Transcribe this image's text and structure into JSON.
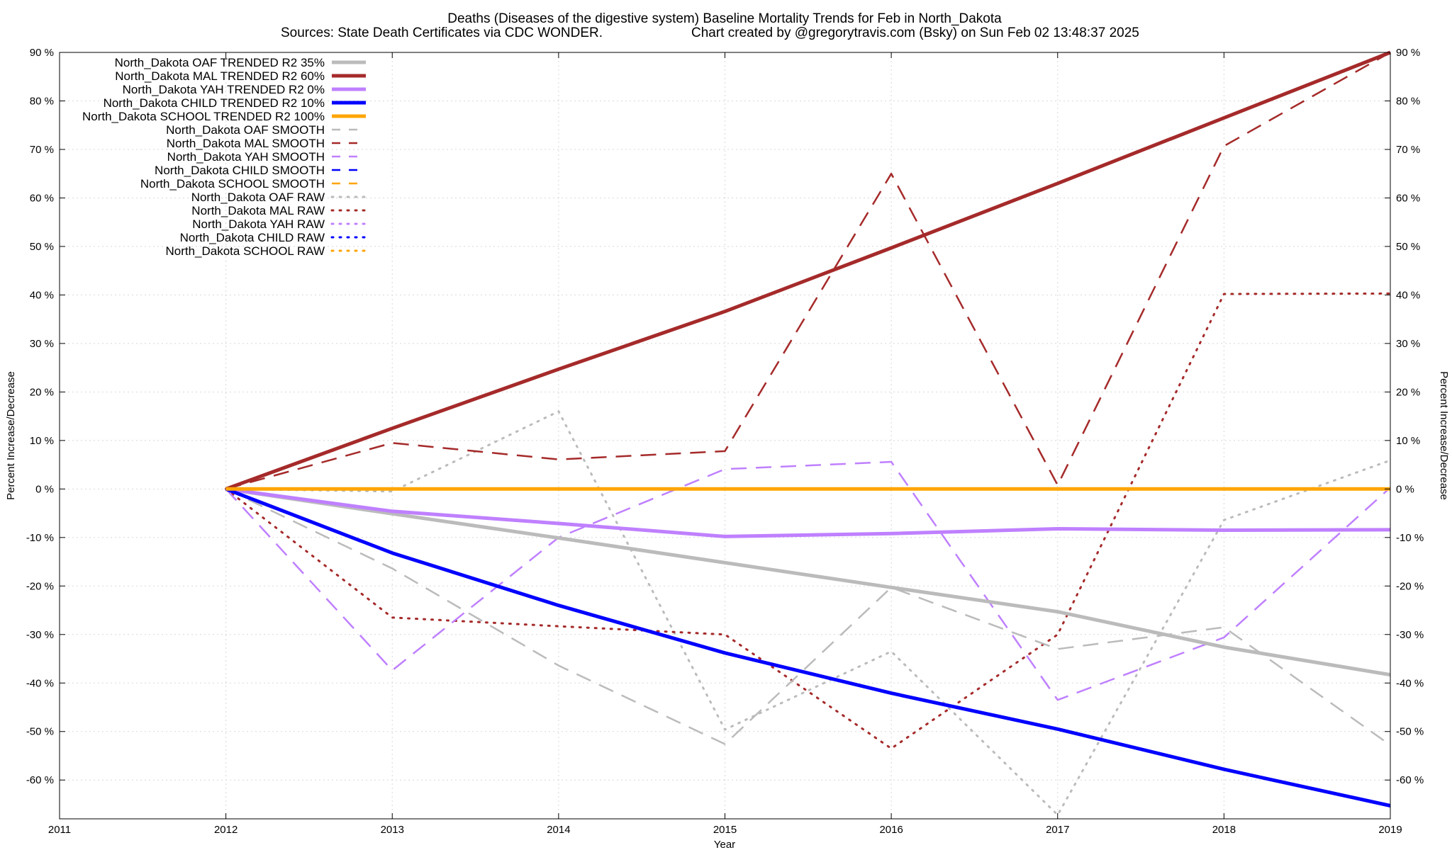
{
  "chart_data": {
    "type": "line",
    "title_line1": "Deaths (Diseases of the digestive system)  Baseline Mortality Trends for Feb in North_Dakota",
    "title_line2_left": "Sources: State Death Certificates via CDC WONDER.",
    "title_line2_right": "Chart created by @gregorytravis.com (Bsky) on Sun Feb 02 13:48:37 2025",
    "xlabel": "Year",
    "ylabel_left": "Percent Increase/Decrease",
    "ylabel_right": "Percent Increase/Decrease",
    "xlim": [
      2011,
      2019
    ],
    "ylim": [
      -68,
      90
    ],
    "x_ticks": [
      "2011",
      "2012",
      "2013",
      "2014",
      "2015",
      "2016",
      "2017",
      "2018",
      "2019"
    ],
    "y_ticks": [
      "90 %",
      "80 %",
      "70 %",
      "60 %",
      "50 %",
      "40 %",
      "30 %",
      "20 %",
      "10 %",
      "0 %",
      "-10 %",
      "-20 %",
      "-30 %",
      "-40 %",
      "-50 %",
      "-60 %"
    ],
    "y_tick_values": [
      90,
      80,
      70,
      60,
      50,
      40,
      30,
      20,
      10,
      0,
      -10,
      -20,
      -30,
      -40,
      -50,
      -60
    ],
    "grid": true,
    "legend_position": "top-left",
    "colors": {
      "oaf": "#bbbbbb",
      "mal": "#a52a2a",
      "yah": "#bf80ff",
      "child": "#0000ff",
      "school": "#ffa500"
    },
    "series": [
      {
        "name": "North_Dakota OAF TRENDED R2  35%",
        "key": "oaf",
        "style": "trend",
        "x": [
          2012,
          2013,
          2014,
          2015,
          2016,
          2017,
          2018,
          2019
        ],
        "values": [
          0,
          -5.1,
          -10.1,
          -15.2,
          -20.3,
          -25.3,
          -32.6,
          -38.3
        ]
      },
      {
        "name": "North_Dakota MAL TRENDED R2  60%",
        "key": "mal",
        "style": "trend",
        "x": [
          2012,
          2013,
          2014,
          2015,
          2016,
          2017,
          2018,
          2019
        ],
        "values": [
          0,
          12.5,
          24.7,
          36.6,
          49.7,
          63.0,
          76.5,
          90.0
        ]
      },
      {
        "name": "North_Dakota YAH TRENDED R2   0%",
        "key": "yah",
        "style": "trend",
        "x": [
          2012,
          2013,
          2014,
          2015,
          2016,
          2017,
          2018,
          2019
        ],
        "values": [
          0,
          -4.6,
          -7.1,
          -9.8,
          -9.2,
          -8.2,
          -8.5,
          -8.4
        ]
      },
      {
        "name": "North_Dakota CHILD TRENDED R2  10%",
        "key": "child",
        "style": "trend",
        "x": [
          2012,
          2013,
          2014,
          2015,
          2016,
          2017,
          2018,
          2019
        ],
        "values": [
          0,
          -13.2,
          -24.0,
          -33.8,
          -42.1,
          -49.5,
          -57.8,
          -65.3
        ]
      },
      {
        "name": "North_Dakota SCHOOL TRENDED R2 100%",
        "key": "school",
        "style": "trend",
        "x": [
          2012,
          2013,
          2014,
          2015,
          2016,
          2017,
          2018,
          2019
        ],
        "values": [
          0,
          0,
          0,
          0,
          0,
          0,
          0,
          0
        ]
      },
      {
        "name": "North_Dakota OAF SMOOTH",
        "key": "oaf",
        "style": "smooth",
        "x": [
          2012,
          2013,
          2014,
          2015,
          2016,
          2017,
          2018,
          2019
        ],
        "values": [
          0,
          -16.4,
          -36.4,
          -52.6,
          -20.3,
          -33.0,
          -28.5,
          -52.8
        ]
      },
      {
        "name": "North_Dakota MAL SMOOTH",
        "key": "mal",
        "style": "smooth",
        "x": [
          2012,
          2013,
          2014,
          2015,
          2016,
          2017,
          2018,
          2019
        ],
        "values": [
          0,
          9.5,
          6.1,
          7.8,
          65.0,
          0.8,
          70.7,
          90.0
        ]
      },
      {
        "name": "North_Dakota YAH SMOOTH",
        "key": "yah",
        "style": "smooth",
        "x": [
          2012,
          2013,
          2014,
          2015,
          2016,
          2017,
          2018,
          2019
        ],
        "values": [
          0,
          -37.4,
          -10.0,
          4.1,
          5.6,
          -43.5,
          -30.6,
          0.3
        ]
      },
      {
        "name": "North_Dakota CHILD SMOOTH",
        "key": "child",
        "style": "smooth",
        "x": [],
        "values": []
      },
      {
        "name": "North_Dakota SCHOOL SMOOTH",
        "key": "school",
        "style": "smooth",
        "x": [],
        "values": []
      },
      {
        "name": "North_Dakota OAF RAW",
        "key": "oaf",
        "style": "raw",
        "x": [
          2012,
          2013,
          2014,
          2015,
          2016,
          2017,
          2018,
          2019
        ],
        "values": [
          0,
          -0.5,
          16.0,
          -49.6,
          -33.5,
          -67.2,
          -6.4,
          5.9
        ]
      },
      {
        "name": "North_Dakota MAL RAW",
        "key": "mal",
        "style": "raw",
        "x": [
          2012,
          2013,
          2014,
          2015,
          2016,
          2017,
          2018,
          2019
        ],
        "values": [
          0,
          -26.5,
          -28.3,
          -30.0,
          -53.5,
          -30.0,
          40.2,
          40.3
        ]
      },
      {
        "name": "North_Dakota YAH RAW",
        "key": "yah",
        "style": "raw",
        "x": [],
        "values": []
      },
      {
        "name": "North_Dakota CHILD RAW",
        "key": "child",
        "style": "raw",
        "x": [],
        "values": []
      },
      {
        "name": "North_Dakota SCHOOL RAW",
        "key": "school",
        "style": "raw",
        "x": [],
        "values": []
      }
    ]
  }
}
